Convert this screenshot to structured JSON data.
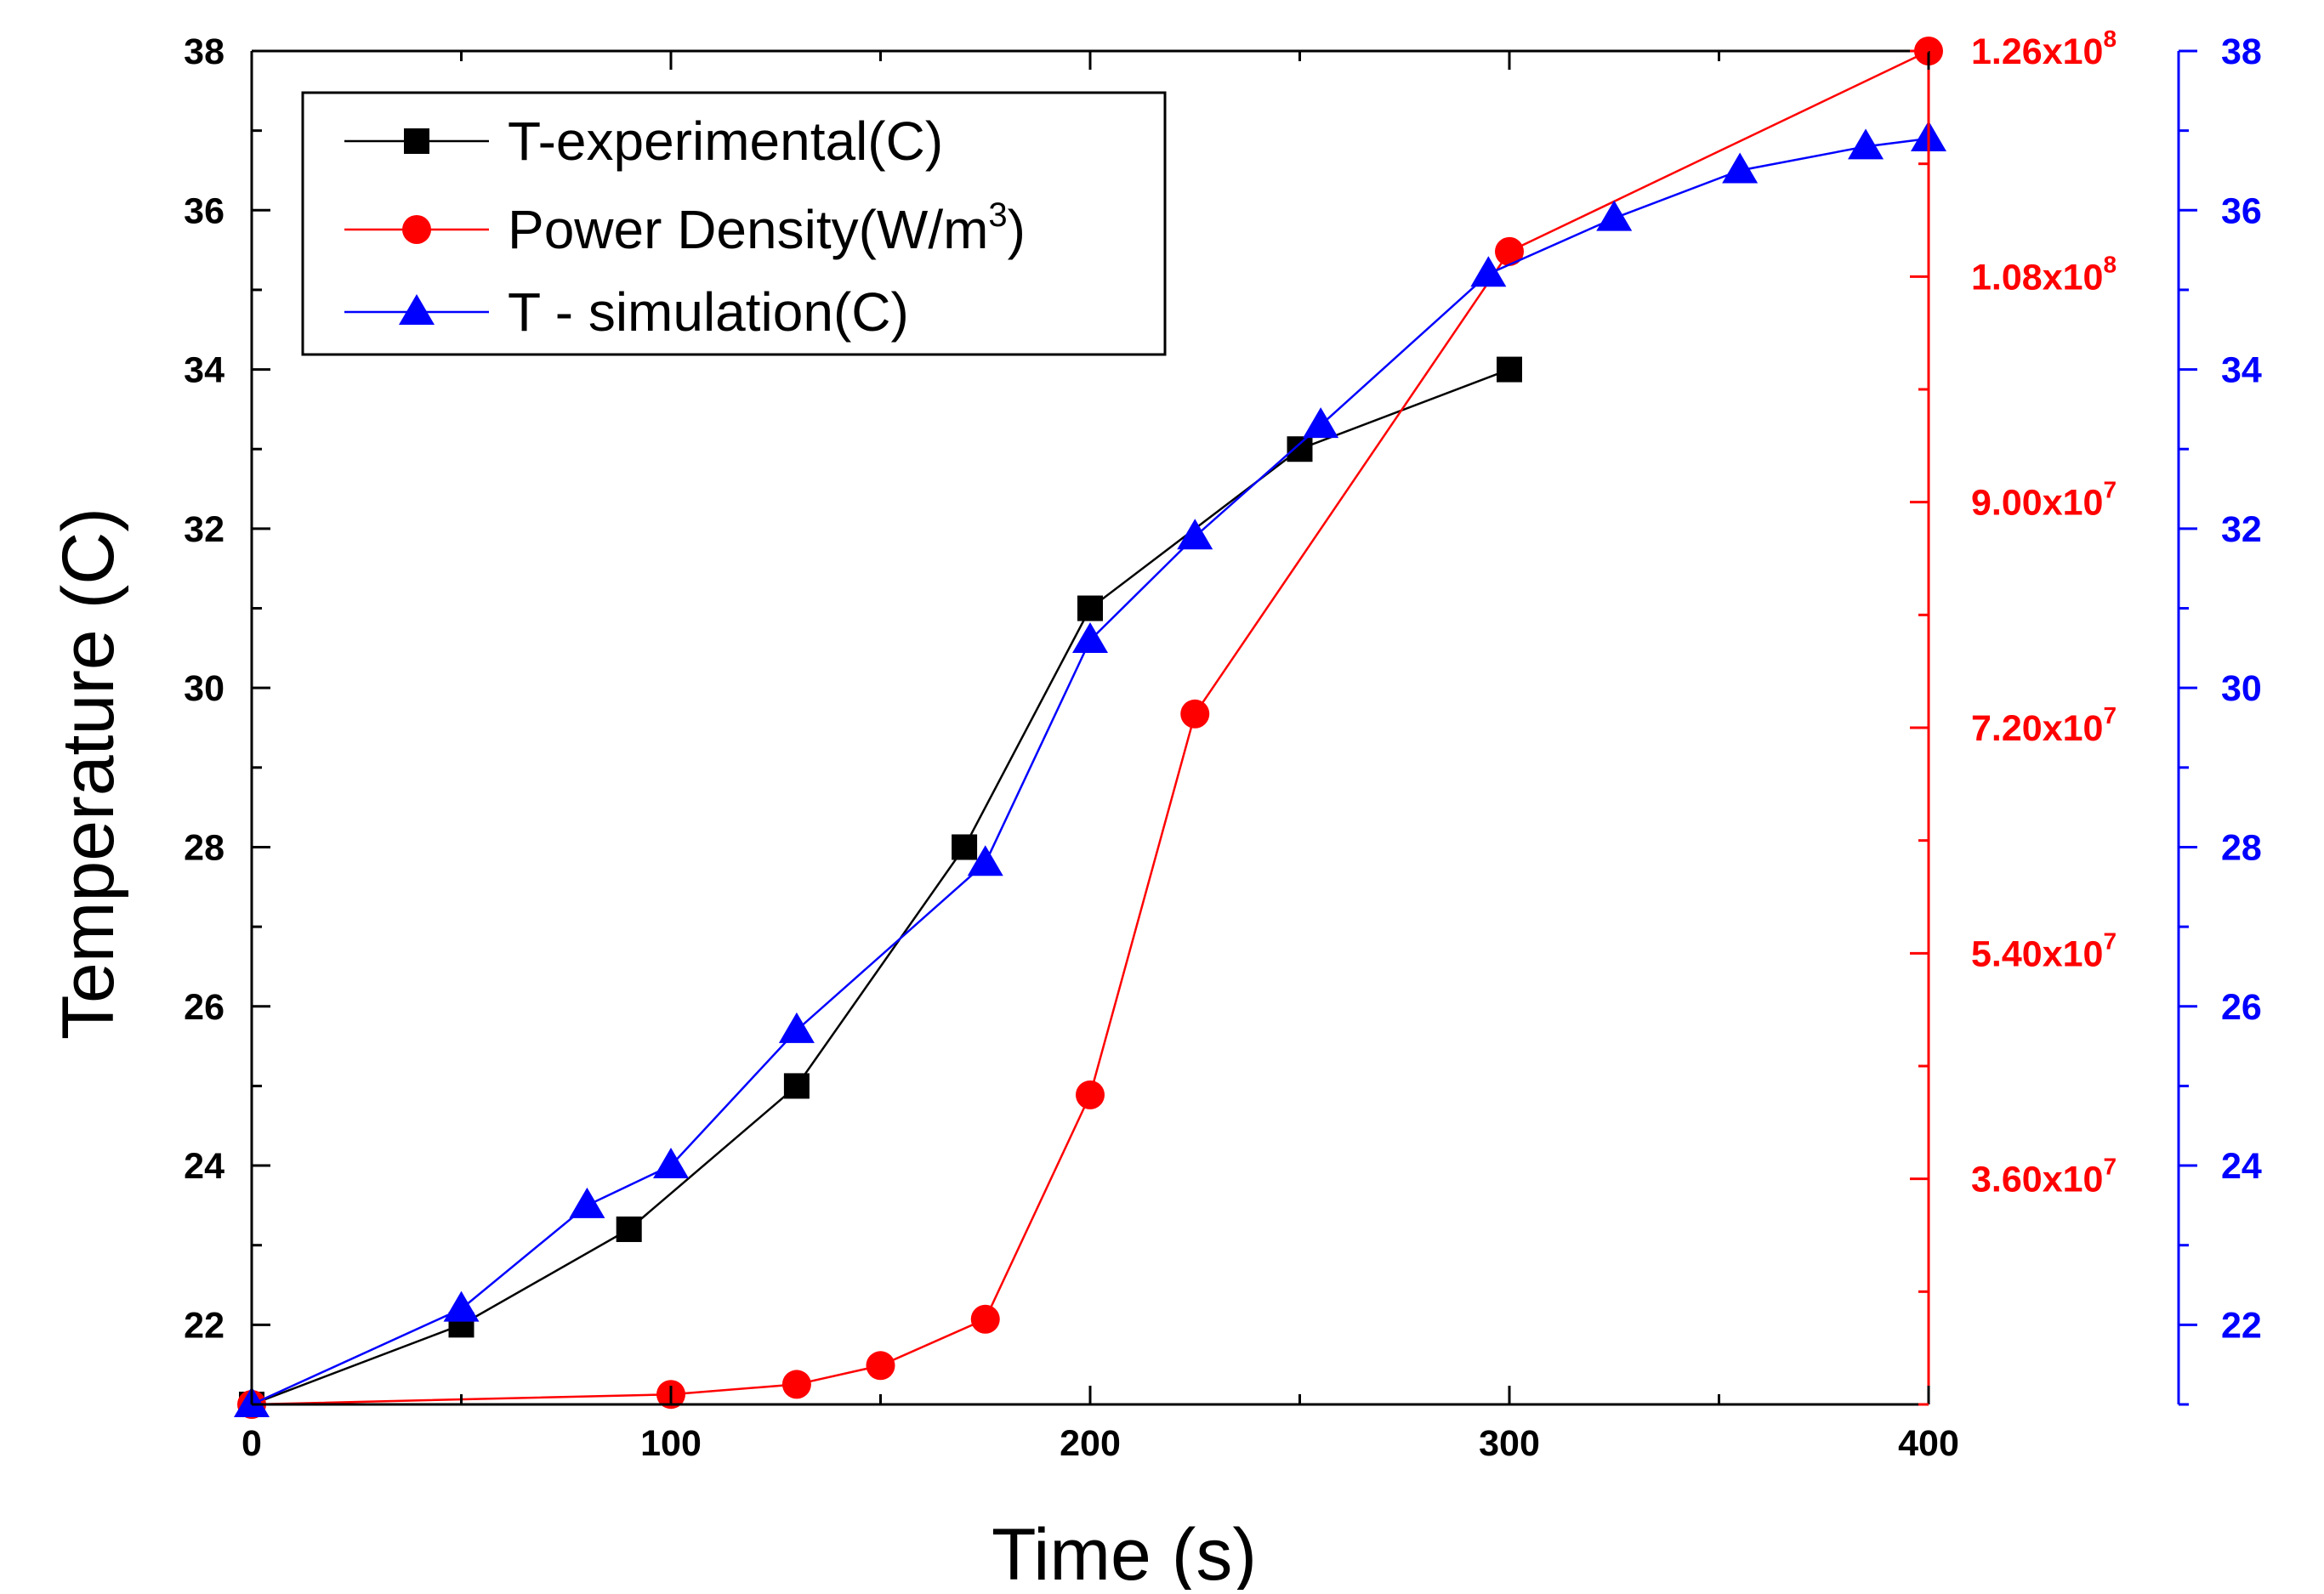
{
  "chart_data": {
    "type": "line",
    "xlabel": "Time (s)",
    "ylabel": "Temperature (C)",
    "xlim": [
      0,
      400
    ],
    "x_ticks": [
      0,
      100,
      200,
      300,
      400
    ],
    "ylim": [
      21,
      38
    ],
    "y_ticks": [
      22,
      24,
      26,
      28,
      30,
      32,
      34,
      36,
      38
    ],
    "y2_range_W_per_m3": [
      18000000,
      126000000
    ],
    "y2_ticks": [
      {
        "value": 36000000,
        "mantissa": "3.60x10",
        "exponent": "7"
      },
      {
        "value": 54000000,
        "mantissa": "5.40x10",
        "exponent": "7"
      },
      {
        "value": 72000000,
        "mantissa": "7.20x10",
        "exponent": "7"
      },
      {
        "value": 90000000,
        "mantissa": "9.00x10",
        "exponent": "7"
      },
      {
        "value": 108000000,
        "mantissa": "1.08x10",
        "exponent": "8"
      },
      {
        "value": 126000000,
        "mantissa": "1.26x10",
        "exponent": "8"
      }
    ],
    "y3_ticks": [
      22,
      24,
      26,
      28,
      30,
      32,
      34,
      36,
      38
    ],
    "grid": false,
    "legend_position": "top-left",
    "colors": {
      "experimental": "#000000",
      "power": "#ff0000",
      "simulation": "#0000ff"
    },
    "series": [
      {
        "name": "T-experimental(C)",
        "axis": "left",
        "marker": "square",
        "x": [
          0,
          50,
          90,
          130,
          170,
          200,
          250,
          300
        ],
        "y": [
          21.0,
          22.0,
          23.2,
          25.0,
          28.0,
          31.0,
          33.0,
          34.0
        ]
      },
      {
        "name": "Power Density(W/m",
        "name_superscript": "3",
        "name_suffix": ")",
        "axis": "right",
        "marker": "circle",
        "x": [
          0,
          100,
          130,
          150,
          175,
          200,
          225,
          300,
          400
        ],
        "y": [
          18000000,
          18800000,
          19600000,
          21100000,
          24800000,
          42700000,
          73100000,
          110000000,
          126000000
        ]
      },
      {
        "name": "T - simulation(C)",
        "axis": "far-right",
        "marker": "triangle",
        "x": [
          0,
          50,
          80,
          100,
          130,
          175,
          200,
          225,
          255,
          295,
          325,
          355,
          385,
          400
        ],
        "y": [
          21.0,
          22.2,
          23.5,
          24.0,
          25.7,
          27.8,
          30.6,
          31.9,
          33.3,
          35.2,
          35.9,
          36.5,
          36.8,
          36.9
        ]
      }
    ]
  }
}
